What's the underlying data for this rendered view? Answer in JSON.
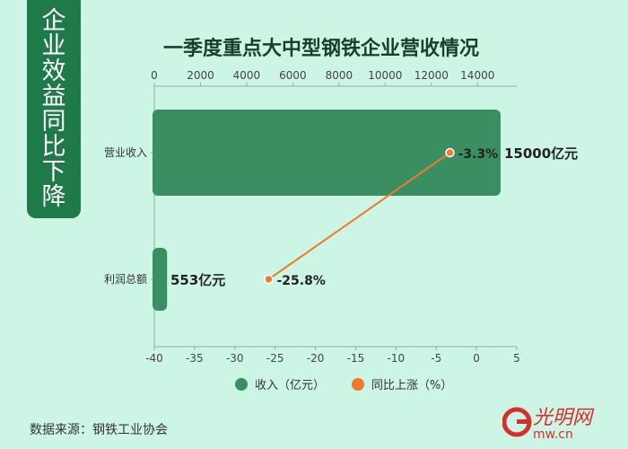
{
  "side_label": [
    "企",
    "业",
    "效",
    "益",
    "同",
    "比",
    "下",
    "降"
  ],
  "title": "一季度重点大中型钢铁企业营收情况",
  "source": "数据来源：钢铁工业协会",
  "colors": {
    "bar": "#3a8f62",
    "line": "#ef7a2d",
    "sidebar": "#1f7a4a",
    "background": "#cdf5e6"
  },
  "chart_data": {
    "type": "bar",
    "orientation": "horizontal",
    "categories": [
      "营业收入",
      "利润总额"
    ],
    "series": [
      {
        "name": "收入（亿元）",
        "type": "bar",
        "axis": "top",
        "values": [
          15000,
          553
        ],
        "labels": [
          "15000亿元",
          "553亿元"
        ]
      },
      {
        "name": "同比上涨（%）",
        "type": "line",
        "axis": "bottom",
        "values": [
          -3.3,
          -25.8
        ],
        "labels": [
          "-3.3%",
          "-25.8%"
        ]
      }
    ],
    "top_axis": {
      "min": 0,
      "max": 15000,
      "ticks": [
        0,
        2000,
        4000,
        6000,
        8000,
        10000,
        12000,
        14000
      ]
    },
    "bottom_axis": {
      "min": -40,
      "max": 5,
      "ticks": [
        -40,
        -35,
        -30,
        -25,
        -20,
        -15,
        -10,
        -5,
        0,
        5
      ]
    },
    "legend_position": "bottom",
    "grid": false
  }
}
